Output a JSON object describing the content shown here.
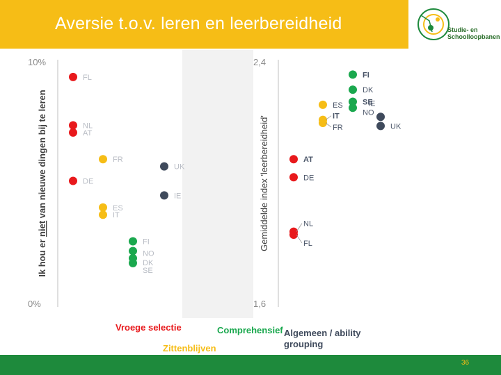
{
  "title": "Aversie t.o.v. leren en leerbereidheid",
  "logo": {
    "line1": "Studie- en",
    "line2": "Schoolloopbanen"
  },
  "page_number": "36",
  "colors": {
    "header": "#f6bd16",
    "footer": "#1e8a3c",
    "red": "#e8191c",
    "yellow": "#f6bd16",
    "green": "#1aa84e",
    "navy": "#3f4a5c"
  },
  "chart_data": [
    {
      "type": "scatter",
      "ylabel_parts": [
        "Ik hou er ",
        "niet",
        " van nieuwe dingen bij te leren"
      ],
      "ytick_top": "10%",
      "ytick_bottom": "0%",
      "ylim": [
        0,
        10
      ],
      "points": [
        {
          "label": "FL",
          "group": "red",
          "y": 9.4
        },
        {
          "label": "NL",
          "group": "red",
          "y": 7.4
        },
        {
          "label": "AT",
          "group": "red",
          "y": 7.1
        },
        {
          "label": "FR",
          "group": "yellow",
          "y": 6.0
        },
        {
          "label": "UK",
          "group": "navy",
          "y": 5.7
        },
        {
          "label": "DE",
          "group": "red",
          "y": 5.1
        },
        {
          "label": "IE",
          "group": "navy",
          "y": 4.5
        },
        {
          "label": "ES",
          "group": "yellow",
          "y": 4.0
        },
        {
          "label": "IT",
          "group": "yellow",
          "y": 3.7
        },
        {
          "label": "FI",
          "group": "green",
          "y": 2.6
        },
        {
          "label": "NO",
          "group": "green",
          "y": 2.2
        },
        {
          "label": "DK",
          "group": "green",
          "y": 1.9
        },
        {
          "label": "SE",
          "group": "green",
          "y": 1.7
        }
      ]
    },
    {
      "type": "scatter",
      "ylabel": "Gemiddelde index 'leerbereidheid'",
      "ytick_top": "2,4",
      "ytick_bottom": "1,6",
      "ylim": [
        1.6,
        2.4
      ],
      "points": [
        {
          "label": "FI",
          "group": "green",
          "y": 2.36
        },
        {
          "label": "DK",
          "group": "green",
          "y": 2.31
        },
        {
          "label": "SE",
          "group": "green",
          "y": 2.27
        },
        {
          "label": "NO",
          "group": "green",
          "y": 2.25
        },
        {
          "label": "ES",
          "group": "yellow",
          "y": 2.26
        },
        {
          "label": "IT",
          "group": "yellow",
          "y": 2.21
        },
        {
          "label": "FR",
          "group": "yellow",
          "y": 2.2
        },
        {
          "label": "IE",
          "group": "navy",
          "y": 2.22
        },
        {
          "label": "UK",
          "group": "navy",
          "y": 2.19
        },
        {
          "label": "AT",
          "group": "red",
          "y": 2.08
        },
        {
          "label": "DE",
          "group": "red",
          "y": 2.02
        },
        {
          "label": "NL",
          "group": "red",
          "y": 1.84
        },
        {
          "label": "FL",
          "group": "red",
          "y": 1.83
        }
      ]
    }
  ],
  "legend": [
    {
      "group": "red",
      "name": "Vroege selectie"
    },
    {
      "group": "yellow",
      "name": "Zittenblijven"
    },
    {
      "group": "green",
      "name": "Comprehensief"
    },
    {
      "group": "navy",
      "name": "Algemeen / ability grouping"
    }
  ]
}
